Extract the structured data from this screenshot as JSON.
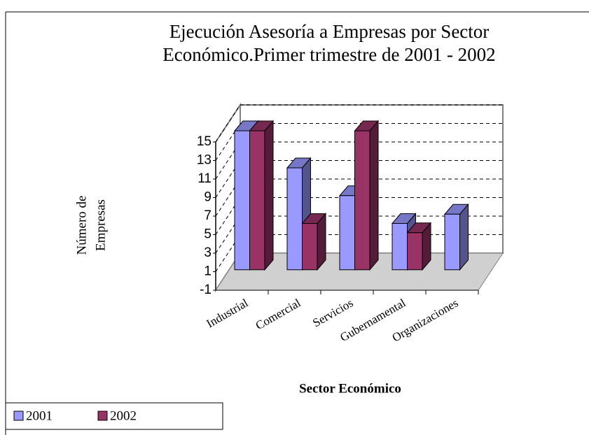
{
  "chart_data": {
    "type": "bar3d",
    "title": [
      "Ejecución Asesoría a Empresas por Sector",
      "Económico.Primer trimestre de 2001 - 2002"
    ],
    "ylabel": [
      "Número de",
      "Empresas"
    ],
    "xlabel": "Sector Económico",
    "categories": [
      "Industrial",
      "Comercial",
      "Servicios",
      "Gubernamental",
      "Organizaciones"
    ],
    "series": [
      {
        "name": "2001",
        "color": "#9999ff",
        "values": [
          15,
          11,
          8,
          5,
          6
        ]
      },
      {
        "name": "2002",
        "color": "#993366",
        "values": [
          15,
          5,
          15,
          4,
          null
        ]
      }
    ],
    "ylim": [
      -1,
      15
    ],
    "yticks": [
      -1,
      1,
      3,
      5,
      7,
      9,
      11,
      13,
      15
    ],
    "grid": true,
    "legend": "bottom-left"
  }
}
